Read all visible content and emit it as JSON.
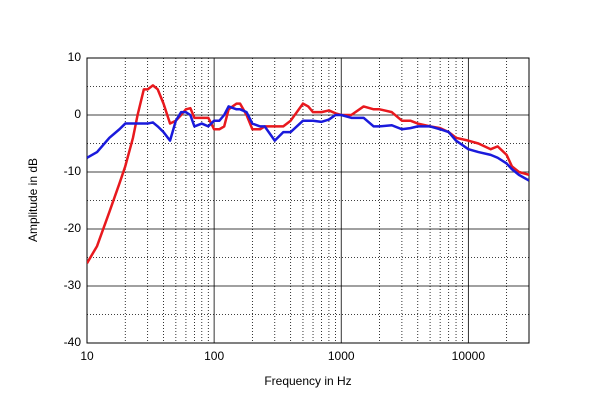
{
  "chart_data": {
    "type": "line",
    "xlabel": "Frequency in Hz",
    "ylabel": "Amplitude in dB",
    "xscale": "log",
    "xlim": [
      10,
      30000
    ],
    "ylim": [
      -40,
      10
    ],
    "xticks": [
      10,
      100,
      1000,
      10000
    ],
    "xminorticks": [
      20,
      30,
      40,
      50,
      60,
      70,
      80,
      90,
      200,
      300,
      400,
      500,
      600,
      700,
      800,
      900,
      2000,
      3000,
      4000,
      5000,
      6000,
      7000,
      8000,
      9000,
      20000
    ],
    "yticks": [
      -40,
      -30,
      -20,
      -10,
      0,
      10
    ],
    "yminorticks": [
      -35,
      -25,
      -15,
      -5,
      5
    ],
    "grid": true,
    "x": [
      10,
      12,
      15,
      18,
      20,
      23,
      25,
      28,
      30,
      33,
      36,
      40,
      45,
      50,
      55,
      60,
      65,
      70,
      80,
      90,
      100,
      110,
      120,
      130,
      150,
      160,
      180,
      200,
      230,
      250,
      300,
      350,
      400,
      500,
      550,
      600,
      700,
      800,
      900,
      1000,
      1200,
      1500,
      1800,
      2000,
      2500,
      3000,
      3500,
      4000,
      5000,
      6000,
      7000,
      8000,
      10000,
      12000,
      15000,
      17000,
      20000,
      22000,
      25000,
      30000
    ],
    "series": [
      {
        "color": "#e8191e",
        "values": [
          -26,
          -23,
          -17,
          -12,
          -9,
          -4,
          0,
          4.5,
          4.5,
          5.2,
          4.5,
          2,
          -1.5,
          -1,
          0,
          1,
          1.2,
          -0.5,
          -0.5,
          -0.5,
          -2.5,
          -2.5,
          -2,
          1,
          2,
          2,
          0,
          -2.5,
          -2.5,
          -2,
          -2,
          -2,
          -1,
          2,
          1.5,
          0.5,
          0.5,
          0.8,
          0.3,
          0,
          0,
          1.5,
          1,
          1,
          0.5,
          -1,
          -1,
          -1.5,
          -2,
          -2.3,
          -3,
          -4,
          -4.5,
          -5,
          -6,
          -5.5,
          -7,
          -9,
          -10,
          -10.5
        ]
      },
      {
        "color": "#1a1adc",
        "values": [
          -7.5,
          -6.5,
          -4,
          -2.5,
          -1.5,
          -1.5,
          -1.5,
          -1.5,
          -1.5,
          -1.3,
          -2,
          -3,
          -4.5,
          -1,
          0.5,
          0.5,
          0,
          -2,
          -1.5,
          -2,
          -1,
          -1,
          0,
          1.5,
          1,
          1,
          0.5,
          -1.5,
          -2,
          -2,
          -4.5,
          -3,
          -3,
          -1,
          -1,
          -1,
          -1.2,
          -0.8,
          0,
          0,
          -0.5,
          -0.5,
          -2,
          -2,
          -1.8,
          -2.5,
          -2.3,
          -2,
          -2,
          -2.5,
          -3,
          -4.5,
          -6,
          -6.5,
          -7,
          -7.5,
          -8.5,
          -9.5,
          -10.5,
          -11.5
        ]
      }
    ]
  }
}
